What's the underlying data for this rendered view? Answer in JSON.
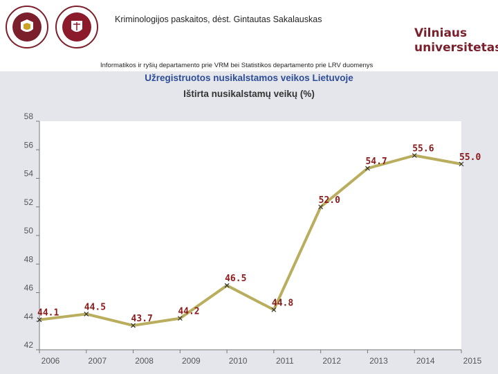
{
  "header": {
    "course_line": "Kriminologijos paskaitos, dėst. Gintautas Sakalauskas",
    "brand_line1": "Vilniaus",
    "brand_line2": "universitetas",
    "source_line": "Informatikos ir ryšių departamento prie VRM bei Statistikos departamento prie LRV duomenys"
  },
  "colors": {
    "line": "#b9ad5e",
    "label": "#8b1a1a",
    "title": "#2d4d98",
    "brand": "#7a1f2b"
  },
  "chart_data": {
    "type": "line",
    "title": "Užregistruotos nusikalstamos veikos Lietuvoje",
    "subtitle": "Ištirta nusikalstamų veikų (%)",
    "categories": [
      "2006",
      "2007",
      "2008",
      "2009",
      "2010",
      "2011",
      "2012",
      "2013",
      "2014",
      "2015"
    ],
    "values": [
      44.1,
      44.5,
      43.7,
      44.2,
      46.5,
      44.8,
      52.0,
      54.7,
      55.6,
      55.0
    ],
    "value_labels": [
      "44.1",
      "44.5",
      "43.7",
      "44.2",
      "46.5",
      "44.8",
      "52.0",
      "54.7",
      "55.6",
      "55.0"
    ],
    "ylim": [
      42,
      58
    ],
    "yticks": [
      "42",
      "44",
      "46",
      "48",
      "50",
      "52",
      "54",
      "56",
      "58"
    ],
    "grid": false,
    "legend": "none"
  }
}
